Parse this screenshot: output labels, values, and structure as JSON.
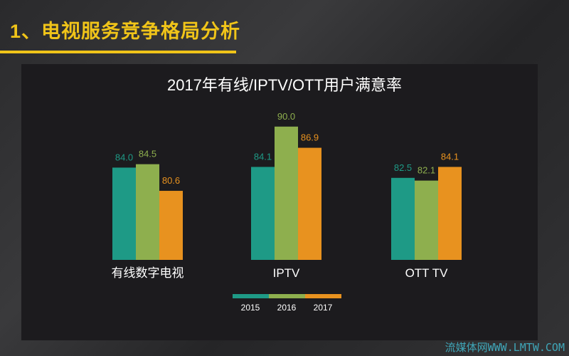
{
  "slide_title": "1、电视服务竞争格局分析",
  "watermark": "流媒体网WWW.LMTW.COM",
  "colors": {
    "accent": "#f0c419",
    "s2015": "#1e9a86",
    "s2016": "#8eaf4e",
    "s2017": "#e8921f"
  },
  "chart_data": {
    "type": "bar",
    "title": "2017年有线/IPTV/OTT用户满意率",
    "categories": [
      "有线数字电视",
      "IPTV",
      "OTT TV"
    ],
    "series": [
      {
        "name": "2015",
        "values": [
          84.0,
          84.1,
          82.5
        ]
      },
      {
        "name": "2016",
        "values": [
          84.5,
          90.0,
          82.1
        ]
      },
      {
        "name": "2017",
        "values": [
          80.6,
          86.9,
          84.1
        ]
      }
    ],
    "value_labels": [
      [
        "84.0",
        "84.1",
        "82.5"
      ],
      [
        "84.5",
        "90.0",
        "82.1"
      ],
      [
        "80.6",
        "86.9",
        "84.1"
      ]
    ],
    "xlabel": "",
    "ylabel": "",
    "ylim": [
      70.5,
      95
    ],
    "grid": false,
    "legend": "bottom-center"
  }
}
